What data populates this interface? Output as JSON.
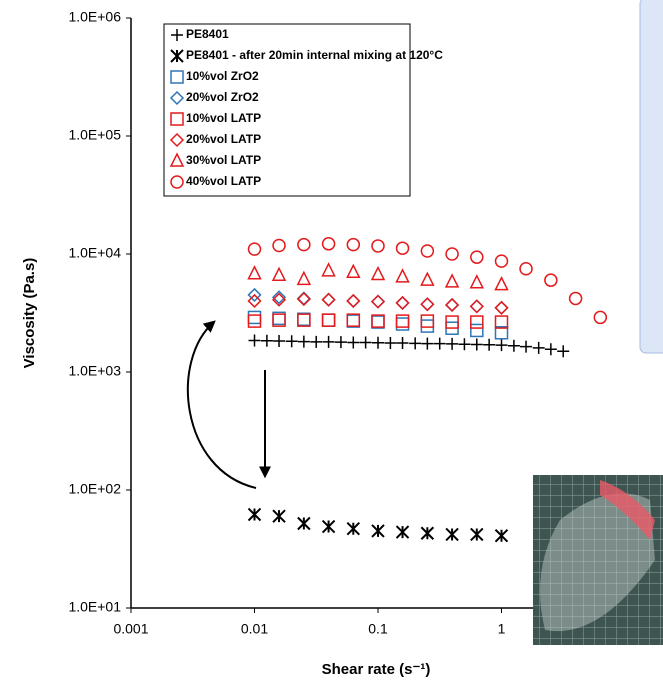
{
  "chart_data": {
    "type": "scatter",
    "x_label": "Shear rate (s⁻¹)",
    "y_label": "Viscosity (Pa.s)",
    "log_x": true,
    "log_y": true,
    "xlim": [
      0.001,
      10
    ],
    "ylim": [
      10,
      1000000
    ],
    "xticks": [
      0.001,
      0.01,
      0.1,
      1
    ],
    "yticks": [
      {
        "value": 10,
        "label": "1.0E+01"
      },
      {
        "value": 100,
        "label": "1.0E+02"
      },
      {
        "value": 1000,
        "label": "1.0E+03"
      },
      {
        "value": 10000,
        "label": "1.0E+04"
      },
      {
        "value": 100000,
        "label": "1.0E+05"
      },
      {
        "value": 1000000,
        "label": "1.0E+06"
      }
    ],
    "series": [
      {
        "name": "PE8401",
        "marker": "plus",
        "color": "#000000",
        "x": [
          0.01,
          0.0126,
          0.0158,
          0.02,
          0.0251,
          0.0316,
          0.0398,
          0.0501,
          0.0631,
          0.0794,
          0.1,
          0.126,
          0.158,
          0.2,
          0.251,
          0.316,
          0.398,
          0.501,
          0.631,
          0.794,
          1,
          1.26,
          1.58,
          2,
          2.51,
          3.16
        ],
        "values": [
          1850,
          1840,
          1830,
          1820,
          1810,
          1800,
          1800,
          1790,
          1780,
          1780,
          1770,
          1760,
          1760,
          1750,
          1740,
          1740,
          1730,
          1720,
          1710,
          1700,
          1690,
          1670,
          1640,
          1600,
          1560,
          1500
        ]
      },
      {
        "name": "PE8401 - after 20min internal mixing at 120°C",
        "marker": "star",
        "color": "#000000",
        "x": [
          0.01,
          0.0158,
          0.0251,
          0.0398,
          0.0631,
          0.1,
          0.158,
          0.251,
          0.398,
          0.631,
          1
        ],
        "values": [
          62,
          60,
          52,
          49,
          47,
          45,
          44,
          43,
          42,
          42,
          41
        ]
      },
      {
        "name": "10%vol ZrO2",
        "marker": "square",
        "color": "#2e75b6",
        "x": [
          0.01,
          0.0158,
          0.0251,
          0.0398,
          0.0631,
          0.1,
          0.158,
          0.251,
          0.398,
          0.631,
          1
        ],
        "values": [
          2900,
          2850,
          2800,
          2750,
          2700,
          2650,
          2550,
          2450,
          2350,
          2250,
          2150
        ]
      },
      {
        "name": "20%vol ZrO2",
        "marker": "diamond",
        "color": "#2e75b6",
        "x": [
          0.01,
          0.0158,
          0.0251,
          0.0398,
          0.0631,
          0.1,
          0.158,
          0.251,
          0.398,
          0.631,
          1
        ],
        "values": [
          4500,
          4300,
          4200,
          4100,
          4000,
          3950,
          3850,
          3750,
          3700,
          3600,
          3500
        ]
      },
      {
        "name": "10%vol LATP",
        "marker": "square",
        "color": "#e41a1c",
        "x": [
          0.01,
          0.0158,
          0.0251,
          0.0398,
          0.0631,
          0.1,
          0.158,
          0.251,
          0.398,
          0.631,
          1
        ],
        "values": [
          2700,
          2750,
          2750,
          2750,
          2750,
          2700,
          2700,
          2700,
          2650,
          2650,
          2650
        ]
      },
      {
        "name": "20%vol LATP",
        "marker": "diamond",
        "color": "#e41a1c",
        "x": [
          0.01,
          0.0158,
          0.0251,
          0.0398,
          0.0631,
          0.1,
          0.158,
          0.251,
          0.398,
          0.631,
          1
        ],
        "values": [
          4000,
          4100,
          4150,
          4100,
          4000,
          3950,
          3850,
          3750,
          3700,
          3600,
          3500
        ]
      },
      {
        "name": "30%vol LATP",
        "marker": "triangle",
        "color": "#e41a1c",
        "x": [
          0.01,
          0.0158,
          0.0251,
          0.0398,
          0.0631,
          0.1,
          0.158,
          0.251,
          0.398,
          0.631,
          1
        ],
        "values": [
          6800,
          6600,
          6100,
          7200,
          7000,
          6700,
          6400,
          6000,
          5800,
          5700,
          5500
        ]
      },
      {
        "name": "40%vol LATP",
        "marker": "circle",
        "color": "#e41a1c",
        "x": [
          0.01,
          0.0158,
          0.0251,
          0.0398,
          0.0631,
          0.1,
          0.158,
          0.251,
          0.398,
          0.631,
          1,
          1.58,
          2.51,
          3.98,
          6.31
        ],
        "values": [
          11000,
          11800,
          12000,
          12200,
          12000,
          11700,
          11200,
          10600,
          10000,
          9400,
          8700,
          7500,
          6000,
          4200,
          2900
        ]
      }
    ]
  }
}
